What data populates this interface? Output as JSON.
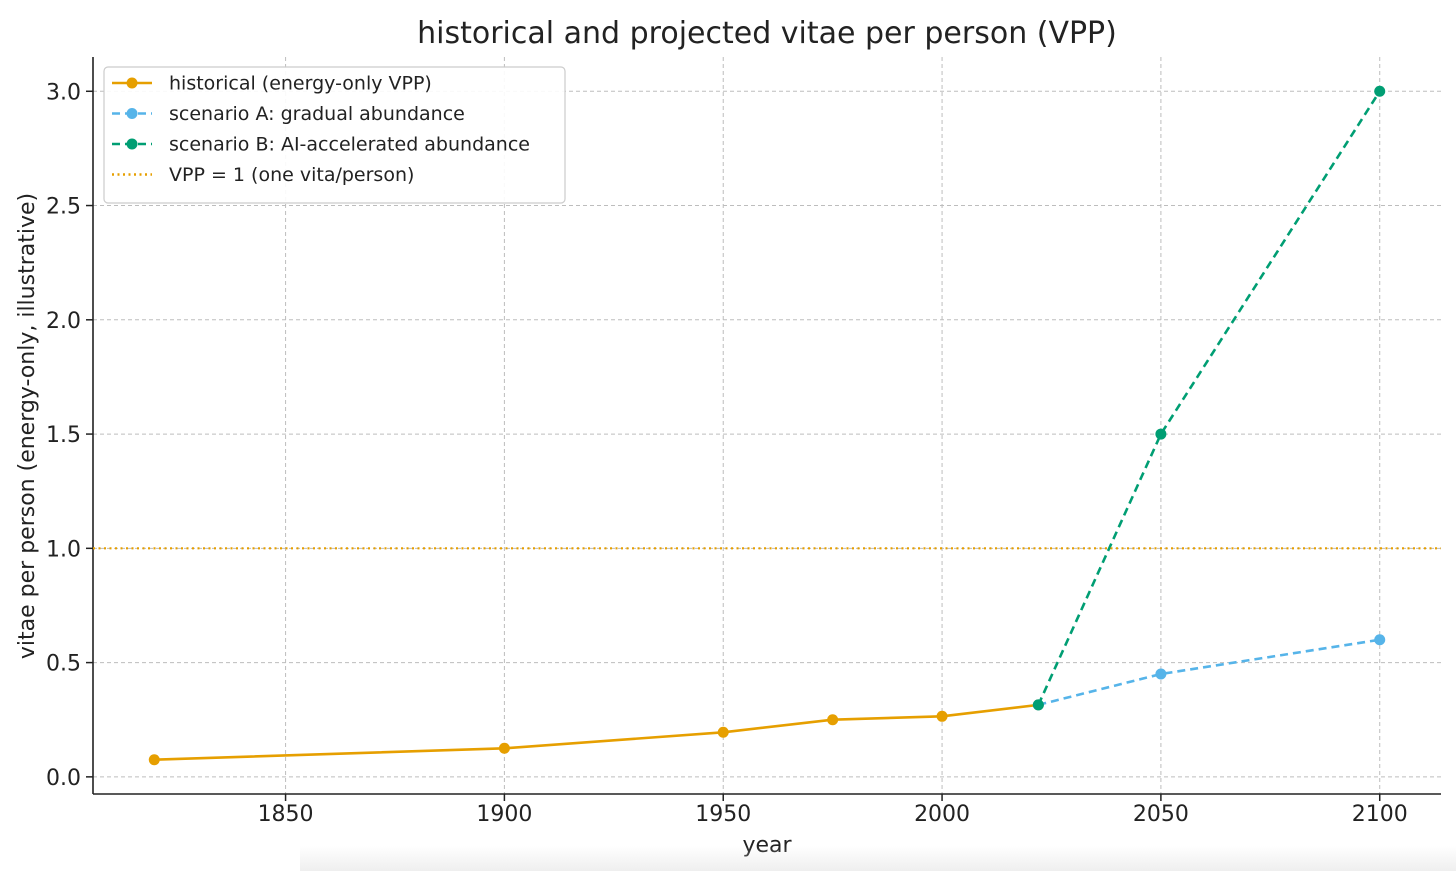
{
  "chart_data": {
    "type": "line",
    "title": "historical and projected vitae per person (VPP)",
    "xlabel": "year",
    "ylabel": "vitae per person (energy-only, illustrative)",
    "xlim": [
      1806,
      2114
    ],
    "ylim": [
      -0.075,
      3.15
    ],
    "xticks": [
      1850,
      1900,
      1950,
      2000,
      2050,
      2100
    ],
    "yticks": [
      0.0,
      0.5,
      1.0,
      1.5,
      2.0,
      2.5,
      3.0
    ],
    "xtick_labels": [
      "1850",
      "1900",
      "1950",
      "2000",
      "2050",
      "2100"
    ],
    "ytick_labels": [
      "0.0",
      "0.5",
      "1.0",
      "1.5",
      "2.0",
      "2.5",
      "3.0"
    ],
    "grid": true,
    "legend_position": "top-left",
    "series": [
      {
        "name": "historical (energy-only VPP)",
        "color": "#E69F00",
        "style": "solid",
        "marker": true,
        "x": [
          1820,
          1900,
          1950,
          1975,
          2000,
          2022
        ],
        "y": [
          0.075,
          0.125,
          0.195,
          0.25,
          0.265,
          0.315
        ]
      },
      {
        "name": "scenario A: gradual abundance",
        "color": "#56B4E9",
        "style": "dashed",
        "marker": true,
        "x": [
          2022,
          2050,
          2100
        ],
        "y": [
          0.315,
          0.45,
          0.6
        ]
      },
      {
        "name": "scenario B: AI-accelerated abundance",
        "color": "#009E73",
        "style": "dashed",
        "marker": true,
        "x": [
          2022,
          2050,
          2100
        ],
        "y": [
          0.315,
          1.5,
          3.0
        ]
      },
      {
        "name": "VPP = 1 (one vita/person)",
        "color": "#E69F00",
        "style": "dotted",
        "marker": false,
        "hline": 1.0
      }
    ]
  }
}
